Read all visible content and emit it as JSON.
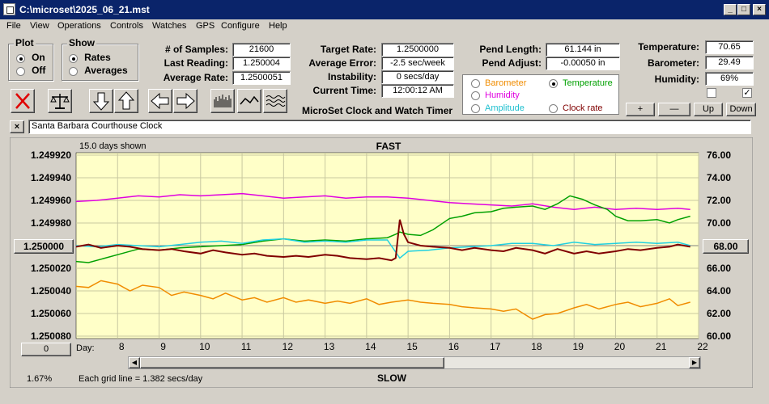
{
  "window": {
    "title": "C:\\microset\\2025_06_21.mst"
  },
  "menu": [
    "File",
    "View",
    "Operations",
    "Controls",
    "Watches",
    "GPS",
    "Configure",
    "Help"
  ],
  "plot_group": {
    "label": "Plot",
    "on": "On",
    "off": "Off",
    "selected": "On"
  },
  "show_group": {
    "label": "Show",
    "rates": "Rates",
    "averages": "Averages",
    "selected": "Rates"
  },
  "stats": {
    "samples_label": "# of Samples:",
    "samples": "21600",
    "last_label": "Last Reading:",
    "last": "1.250004",
    "avg_label": "Average Rate:",
    "avg": "1.2500051"
  },
  "target": {
    "target_label": "Target Rate:",
    "target": "1.2500000",
    "error_label": "Average Error:",
    "error": "-2.5 sec/week",
    "instab_label": "Instability:",
    "instab": "0 secs/day",
    "time_label": "Current Time:",
    "time": "12:00:12 AM"
  },
  "app_name": "MicroSet Clock and Watch Timer",
  "pend": {
    "length_label": "Pend Length:",
    "length": "61.144 in",
    "adjust_label": "Pend Adjust:",
    "adjust": "-0.00050 in"
  },
  "env": {
    "temp_label": "Temperature:",
    "temp": "70.65",
    "baro_label": "Barometer:",
    "baro": "29.49",
    "hum_label": "Humidity:",
    "hum": "69%"
  },
  "legend": {
    "barometer": "Barometer",
    "temperature": "Temperature",
    "humidity": "Humidity",
    "amplitude": "Amplitude",
    "clock_rate": "Clock rate",
    "selected": "Temperature"
  },
  "scale_buttons": {
    "plus": "+",
    "minus": "—",
    "up": "Up",
    "down": "Down"
  },
  "watch_name": "Santa Barbara Courthouse Clock",
  "close_x": "×",
  "colors": {
    "barometer": "#f08c00",
    "temperature": "#00a000",
    "humidity": "#e000e0",
    "amplitude": "#20d0e0",
    "clock_rate": "#800000",
    "plot_bg": "#ffffc8"
  },
  "chart_data": {
    "type": "line",
    "top_label": "FAST",
    "bottom_label": "SLOW",
    "days_shown": "15.0 days shown",
    "grid_note": "Each grid line = 1.382 secs/day",
    "zoom": "1.67%",
    "left_button": "1.250000",
    "right_button": "68.00",
    "bottom_left_button": "0",
    "day_label": "Day:",
    "left_axis": {
      "ticks": [
        "1.249920",
        "1.249940",
        "1.249960",
        "1.249980",
        "1.250000",
        "1.250020",
        "1.250040",
        "1.250060",
        "1.250080"
      ],
      "range": [
        1.24992,
        1.25008
      ],
      "inverted": true
    },
    "right_axis": {
      "ticks": [
        "76.00",
        "74.00",
        "72.00",
        "70.00",
        "68.00",
        "66.00",
        "64.00",
        "62.00",
        "60.00"
      ],
      "range": [
        60,
        76
      ]
    },
    "x_ticks": [
      "8",
      "9",
      "10",
      "11",
      "12",
      "13",
      "14",
      "15",
      "16",
      "17",
      "18",
      "19",
      "20",
      "21",
      "22"
    ],
    "xlim": [
      7,
      22
    ],
    "series": [
      {
        "name": "Humidity",
        "color_key": "humidity",
        "axis": "right",
        "x": [
          7,
          7.5,
          8,
          8.5,
          9,
          9.5,
          10,
          10.5,
          11,
          11.5,
          12,
          12.5,
          13,
          13.5,
          14,
          14.5,
          15,
          15.5,
          16,
          16.5,
          17,
          17.5,
          18,
          18.5,
          19,
          19.5,
          20,
          20.5,
          21,
          21.5,
          21.8
        ],
        "y": [
          71.9,
          72.0,
          72.2,
          72.4,
          72.3,
          72.5,
          72.4,
          72.5,
          72.6,
          72.4,
          72.2,
          72.3,
          72.4,
          72.2,
          72.3,
          72.3,
          72.2,
          72.0,
          71.8,
          71.7,
          71.6,
          71.5,
          71.7,
          71.4,
          71.2,
          71.4,
          71.2,
          71.3,
          71.2,
          71.3,
          71.2
        ]
      },
      {
        "name": "Temperature",
        "color_key": "temperature",
        "axis": "right",
        "x": [
          7,
          7.3,
          7.6,
          8,
          8.5,
          9,
          9.5,
          10,
          10.5,
          11,
          11.5,
          12,
          12.5,
          13,
          13.5,
          14,
          14.5,
          14.7,
          14.8,
          15,
          15.3,
          15.6,
          16,
          16.3,
          16.6,
          17,
          17.3,
          17.6,
          18,
          18.3,
          18.6,
          18.9,
          19.2,
          19.5,
          19.8,
          20,
          20.3,
          20.6,
          21,
          21.3,
          21.5,
          21.8
        ],
        "y": [
          66.6,
          66.5,
          66.8,
          67.2,
          67.7,
          67.6,
          67.8,
          67.9,
          68.0,
          68.1,
          68.4,
          68.6,
          68.4,
          68.5,
          68.4,
          68.6,
          68.7,
          69.0,
          69.2,
          69.0,
          68.9,
          69.4,
          70.4,
          70.6,
          70.9,
          71.0,
          71.3,
          71.4,
          71.5,
          71.2,
          71.7,
          72.4,
          72.1,
          71.6,
          71.2,
          70.6,
          70.2,
          70.2,
          70.3,
          70.0,
          70.3,
          70.6
        ]
      },
      {
        "name": "Amplitude",
        "color_key": "amplitude",
        "axis": "right",
        "x": [
          7,
          7.5,
          8,
          8.5,
          9,
          9.5,
          10,
          10.5,
          11,
          11.5,
          12,
          12.5,
          13,
          13.5,
          14,
          14.5,
          14.8,
          15,
          15.5,
          16,
          16.5,
          17,
          17.5,
          18,
          18.5,
          19,
          19.5,
          20,
          20.5,
          21,
          21.5,
          21.8
        ],
        "y": [
          68.0,
          67.9,
          68.1,
          68.0,
          67.9,
          68.1,
          68.3,
          68.4,
          68.2,
          68.5,
          68.6,
          68.3,
          68.4,
          68.3,
          68.5,
          68.5,
          66.9,
          67.5,
          67.6,
          67.8,
          67.9,
          68.0,
          68.2,
          68.2,
          68.0,
          68.3,
          68.1,
          68.2,
          68.3,
          68.2,
          68.3,
          68.0
        ]
      },
      {
        "name": "Clock rate",
        "color_key": "clock_rate",
        "axis": "right",
        "x": [
          7,
          7.3,
          7.6,
          8,
          8.3,
          8.6,
          9,
          9.3,
          9.6,
          10,
          10.3,
          10.6,
          11,
          11.3,
          11.6,
          12,
          12.3,
          12.6,
          13,
          13.3,
          13.6,
          14,
          14.3,
          14.6,
          14.7,
          14.8,
          14.9,
          15,
          15.3,
          15.6,
          16,
          16.3,
          16.6,
          17,
          17.3,
          17.6,
          18,
          18.3,
          18.6,
          19,
          19.3,
          19.6,
          20,
          20.3,
          20.6,
          21,
          21.3,
          21.5,
          21.8
        ],
        "y": [
          67.9,
          68.1,
          67.8,
          68.0,
          67.9,
          67.7,
          67.6,
          67.7,
          67.5,
          67.3,
          67.6,
          67.4,
          67.2,
          67.3,
          67.1,
          67.0,
          67.1,
          67.0,
          67.2,
          67.1,
          66.9,
          66.8,
          66.9,
          66.7,
          66.9,
          70.3,
          69.0,
          68.3,
          68.0,
          67.9,
          67.8,
          67.6,
          67.8,
          67.6,
          67.5,
          67.8,
          67.6,
          67.3,
          67.7,
          67.3,
          67.5,
          67.3,
          67.5,
          67.7,
          67.6,
          67.8,
          67.9,
          68.1,
          67.9
        ]
      },
      {
        "name": "Barometer",
        "color_key": "barometer",
        "axis": "right",
        "x": [
          7,
          7.3,
          7.6,
          8,
          8.3,
          8.6,
          9,
          9.3,
          9.6,
          10,
          10.3,
          10.6,
          11,
          11.3,
          11.6,
          12,
          12.3,
          12.6,
          13,
          13.3,
          13.6,
          14,
          14.3,
          14.6,
          15,
          15.3,
          15.6,
          16,
          16.3,
          16.6,
          17,
          17.3,
          17.6,
          18,
          18.3,
          18.6,
          19,
          19.3,
          19.6,
          20,
          20.3,
          20.6,
          21,
          21.3,
          21.5,
          21.8
        ],
        "y": [
          64.4,
          64.3,
          64.9,
          64.6,
          64.0,
          64.5,
          64.3,
          63.6,
          63.9,
          63.6,
          63.3,
          63.8,
          63.2,
          63.4,
          63.0,
          63.4,
          63.0,
          63.2,
          62.9,
          63.1,
          62.9,
          63.3,
          62.8,
          63.0,
          63.2,
          63.0,
          62.9,
          62.8,
          62.6,
          62.5,
          62.4,
          62.2,
          62.4,
          61.5,
          61.9,
          62.0,
          62.5,
          62.8,
          62.4,
          62.8,
          63.0,
          62.6,
          62.9,
          63.3,
          62.7,
          63.0
        ]
      }
    ]
  }
}
